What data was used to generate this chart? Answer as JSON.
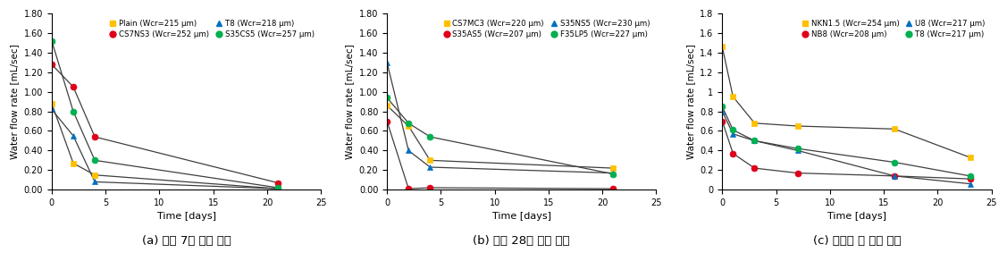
{
  "charts": [
    {
      "series": [
        {
          "label": "Plain (Wcr=215 μm)",
          "color": "#FFC000",
          "marker": "s",
          "x": [
            0,
            2,
            4,
            21
          ],
          "y": [
            0.88,
            0.27,
            0.15,
            0.01
          ]
        },
        {
          "label": "CS7NS3 (Wcr=252 μm)",
          "color": "#E0001A",
          "marker": "o",
          "x": [
            0,
            2,
            4,
            21
          ],
          "y": [
            1.28,
            1.05,
            0.54,
            0.07
          ]
        },
        {
          "label": "T8 (Wcr=218 μm)",
          "color": "#0070C0",
          "marker": "^",
          "x": [
            0,
            2,
            4,
            21
          ],
          "y": [
            0.82,
            0.55,
            0.08,
            0.01
          ]
        },
        {
          "label": "S35CS5 (Wcr=257 μm)",
          "color": "#00B050",
          "marker": "o",
          "x": [
            0,
            2,
            4,
            21
          ],
          "y": [
            1.52,
            0.8,
            0.3,
            0.02
          ]
        }
      ],
      "ylim": [
        0,
        1.8
      ],
      "yticks": [
        0.0,
        0.2,
        0.4,
        0.6,
        0.8,
        1.0,
        1.2,
        1.4,
        1.6,
        1.8
      ],
      "yticklabels": [
        "0.00",
        "0.20",
        "0.40",
        "0.60",
        "0.80",
        "1.00",
        "1.20",
        "1.40",
        "1.60",
        "1.80"
      ],
      "xlim": [
        0,
        25
      ],
      "xticks": [
        0,
        5,
        10,
        15,
        20,
        25
      ],
      "legend_order": [
        0,
        1,
        2,
        3
      ]
    },
    {
      "series": [
        {
          "label": "CS7MC3 (Wcr=220 μm)",
          "color": "#FFC000",
          "marker": "s",
          "x": [
            0,
            2,
            4,
            21
          ],
          "y": [
            0.86,
            0.65,
            0.3,
            0.22
          ]
        },
        {
          "label": "S35AS5 (Wcr=207 μm)",
          "color": "#E0001A",
          "marker": "o",
          "x": [
            0,
            2,
            4,
            21
          ],
          "y": [
            0.7,
            0.01,
            0.02,
            0.01
          ]
        },
        {
          "label": "S35NS5 (Wcr=230 μm)",
          "color": "#0070C0",
          "marker": "^",
          "x": [
            0,
            2,
            4,
            21
          ],
          "y": [
            1.3,
            0.4,
            0.23,
            0.17
          ]
        },
        {
          "label": "F35LP5 (Wcr=227 μm)",
          "color": "#00B050",
          "marker": "o",
          "x": [
            0,
            2,
            4,
            21
          ],
          "y": [
            0.94,
            0.68,
            0.54,
            0.16
          ]
        }
      ],
      "ylim": [
        0,
        1.8
      ],
      "yticks": [
        0.0,
        0.2,
        0.4,
        0.6,
        0.8,
        1.0,
        1.2,
        1.4,
        1.6,
        1.8
      ],
      "yticklabels": [
        "0.00",
        "0.20",
        "0.40",
        "0.60",
        "0.80",
        "1.00",
        "1.20",
        "1.40",
        "1.60",
        "1.80"
      ],
      "xlim": [
        0,
        25
      ],
      "xticks": [
        0,
        5,
        10,
        15,
        20,
        25
      ],
      "legend_order": [
        0,
        1,
        2,
        3
      ]
    },
    {
      "series": [
        {
          "label": "NKN1.5 (Wcr=254 μm)",
          "color": "#FFC000",
          "marker": "s",
          "x": [
            0,
            1,
            3,
            7,
            16,
            23
          ],
          "y": [
            1.46,
            0.95,
            0.68,
            0.65,
            0.62,
            0.33
          ]
        },
        {
          "label": "NB8 (Wcr=208 μm)",
          "color": "#E0001A",
          "marker": "o",
          "x": [
            0,
            1,
            3,
            7,
            16,
            23
          ],
          "y": [
            0.7,
            0.37,
            0.22,
            0.17,
            0.14,
            0.11
          ]
        },
        {
          "label": "U8 (Wcr=217 μm)",
          "color": "#0070C0",
          "marker": "^",
          "x": [
            0,
            1,
            3,
            7,
            16,
            23
          ],
          "y": [
            0.8,
            0.57,
            0.5,
            0.4,
            0.14,
            0.06
          ]
        },
        {
          "label": "T8 (Wcr=217 μm)",
          "color": "#00B050",
          "marker": "o",
          "x": [
            0,
            1,
            3,
            7,
            16,
            23
          ],
          "y": [
            0.85,
            0.61,
            0.5,
            0.42,
            0.28,
            0.14
          ]
        }
      ],
      "ylim": [
        0,
        1.8
      ],
      "yticks": [
        0,
        0.2,
        0.4,
        0.6,
        0.8,
        1.0,
        1.2,
        1.4,
        1.6,
        1.8
      ],
      "yticklabels": [
        "0",
        "0.2",
        "0.4",
        "0.6",
        "0.8",
        "1",
        "1.2",
        "1.4",
        "1.6",
        "1.8"
      ],
      "xlim": [
        0,
        25
      ],
      "xticks": [
        0,
        5,
        10,
        15,
        20,
        25
      ],
      "legend_order": [
        0,
        1,
        2,
        3
      ]
    }
  ],
  "xlabel": "Time [days]",
  "ylabel": "Water flow rate [mL/sec]",
  "captions": [
    "(a) 재령 7일 균열 유도",
    "(b) 재령 28일 균열 유도",
    "(c) 팩운재 및 기타 소재"
  ],
  "line_color": "#3F3F3F",
  "background": "#ffffff"
}
